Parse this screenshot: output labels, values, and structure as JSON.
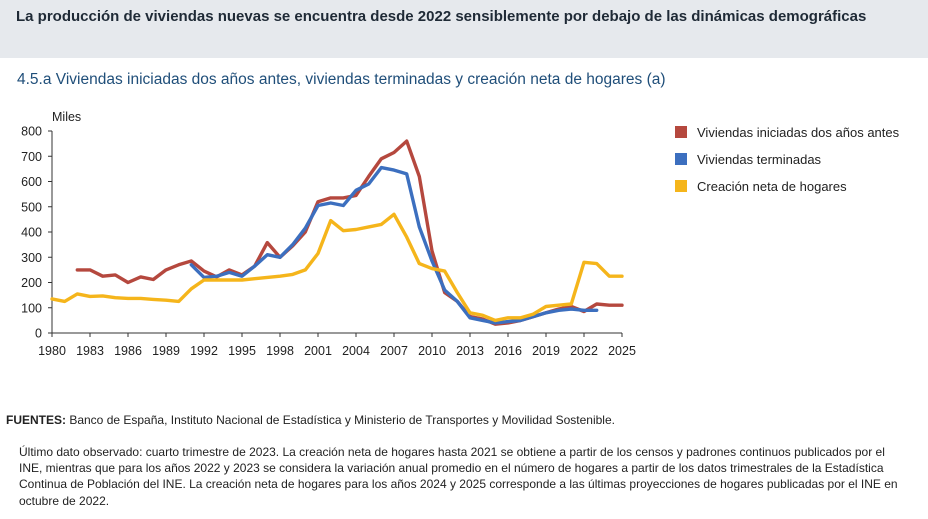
{
  "header": {
    "title": "La producción de viviendas nuevas se encuentra desde 2022 sensiblemente por debajo de las dinámicas demográficas"
  },
  "chart_data": {
    "type": "line",
    "title": "4.5.a  Viviendas iniciadas dos años antes, viviendas terminadas y creación neta de hogares (a)",
    "ylabel": "Miles",
    "xlabel": "",
    "xlim": [
      1980,
      2025
    ],
    "ylim": [
      0,
      800
    ],
    "x_ticks": [
      "1980",
      "1983",
      "1986",
      "1989",
      "1992",
      "1995",
      "1998",
      "2001",
      "2004",
      "2007",
      "2010",
      "2013",
      "2016",
      "2019",
      "2022",
      "2025"
    ],
    "y_ticks": [
      "0",
      "100",
      "200",
      "300",
      "400",
      "500",
      "600",
      "700",
      "800"
    ],
    "grid": false,
    "legend_position": "right",
    "series": [
      {
        "name": "Viviendas iniciadas dos años antes",
        "color": "#b5483e",
        "points": [
          [
            1982,
            250
          ],
          [
            1983,
            250
          ],
          [
            1984,
            225
          ],
          [
            1985,
            230
          ],
          [
            1986,
            200
          ],
          [
            1987,
            222
          ],
          [
            1988,
            212
          ],
          [
            1989,
            250
          ],
          [
            1990,
            270
          ],
          [
            1991,
            285
          ],
          [
            1992,
            245
          ],
          [
            1993,
            222
          ],
          [
            1994,
            250
          ],
          [
            1995,
            230
          ],
          [
            1996,
            265
          ],
          [
            1997,
            358
          ],
          [
            1998,
            300
          ],
          [
            1999,
            345
          ],
          [
            2000,
            400
          ],
          [
            2001,
            520
          ],
          [
            2002,
            535
          ],
          [
            2003,
            535
          ],
          [
            2004,
            545
          ],
          [
            2005,
            620
          ],
          [
            2006,
            690
          ],
          [
            2007,
            715
          ],
          [
            2008,
            760
          ],
          [
            2009,
            620
          ],
          [
            2010,
            325
          ],
          [
            2011,
            160
          ],
          [
            2012,
            125
          ],
          [
            2013,
            65
          ],
          [
            2014,
            55
          ],
          [
            2015,
            35
          ],
          [
            2016,
            40
          ],
          [
            2017,
            50
          ],
          [
            2018,
            65
          ],
          [
            2019,
            80
          ],
          [
            2020,
            95
          ],
          [
            2021,
            105
          ],
          [
            2022,
            85
          ],
          [
            2023,
            115
          ],
          [
            2024,
            110
          ],
          [
            2025,
            110
          ]
        ]
      },
      {
        "name": "Viviendas terminadas",
        "color": "#3c6fbf",
        "points": [
          [
            1991,
            270
          ],
          [
            1992,
            220
          ],
          [
            1993,
            225
          ],
          [
            1994,
            240
          ],
          [
            1995,
            225
          ],
          [
            1996,
            265
          ],
          [
            1997,
            310
          ],
          [
            1998,
            300
          ],
          [
            1999,
            350
          ],
          [
            2000,
            415
          ],
          [
            2001,
            505
          ],
          [
            2002,
            515
          ],
          [
            2003,
            505
          ],
          [
            2004,
            565
          ],
          [
            2005,
            590
          ],
          [
            2006,
            655
          ],
          [
            2007,
            645
          ],
          [
            2008,
            630
          ],
          [
            2009,
            420
          ],
          [
            2010,
            285
          ],
          [
            2011,
            170
          ],
          [
            2012,
            125
          ],
          [
            2013,
            60
          ],
          [
            2014,
            50
          ],
          [
            2015,
            40
          ],
          [
            2016,
            45
          ],
          [
            2017,
            50
          ],
          [
            2018,
            65
          ],
          [
            2019,
            80
          ],
          [
            2020,
            90
          ],
          [
            2021,
            95
          ],
          [
            2022,
            90
          ],
          [
            2023,
            90
          ]
        ]
      },
      {
        "name": "Creación neta de hogares",
        "color": "#f5b51b",
        "points": [
          [
            1980,
            135
          ],
          [
            1981,
            125
          ],
          [
            1982,
            155
          ],
          [
            1983,
            145
          ],
          [
            1984,
            147
          ],
          [
            1985,
            140
          ],
          [
            1986,
            137
          ],
          [
            1987,
            137
          ],
          [
            1988,
            133
          ],
          [
            1989,
            130
          ],
          [
            1990,
            125
          ],
          [
            1991,
            175
          ],
          [
            1992,
            210
          ],
          [
            1993,
            210
          ],
          [
            1994,
            210
          ],
          [
            1995,
            210
          ],
          [
            1996,
            215
          ],
          [
            1997,
            220
          ],
          [
            1998,
            225
          ],
          [
            1999,
            232
          ],
          [
            2000,
            250
          ],
          [
            2001,
            315
          ],
          [
            2002,
            445
          ],
          [
            2003,
            405
          ],
          [
            2004,
            410
          ],
          [
            2005,
            420
          ],
          [
            2006,
            430
          ],
          [
            2007,
            470
          ],
          [
            2008,
            380
          ],
          [
            2009,
            275
          ],
          [
            2010,
            255
          ],
          [
            2011,
            245
          ],
          [
            2012,
            160
          ],
          [
            2013,
            80
          ],
          [
            2014,
            70
          ],
          [
            2015,
            50
          ],
          [
            2016,
            60
          ],
          [
            2017,
            60
          ],
          [
            2018,
            75
          ],
          [
            2019,
            105
          ],
          [
            2020,
            110
          ],
          [
            2021,
            115
          ],
          [
            2022,
            280
          ],
          [
            2023,
            275
          ],
          [
            2024,
            225
          ],
          [
            2025,
            225
          ]
        ]
      }
    ]
  },
  "footer": {
    "sources_label": "FUENTES:",
    "sources_text": " Banco de España, Instituto Nacional de Estadística y Ministerio de Transportes y Movilidad Sostenible.",
    "note": "Último dato observado: cuarto trimestre de 2023. La creación neta de hogares hasta 2021 se obtiene a partir de los censos y padrones continuos publicados por el INE, mientras que para los años 2022 y 2023 se considera la variación anual promedio en el número de hogares a partir de los datos trimestrales de la Estadística Continua de Población del INE. La creación neta de hogares para los años 2024 y 2025 corresponde a las últimas proyecciones de hogares publicadas por el INE en octubre de 2022."
  }
}
